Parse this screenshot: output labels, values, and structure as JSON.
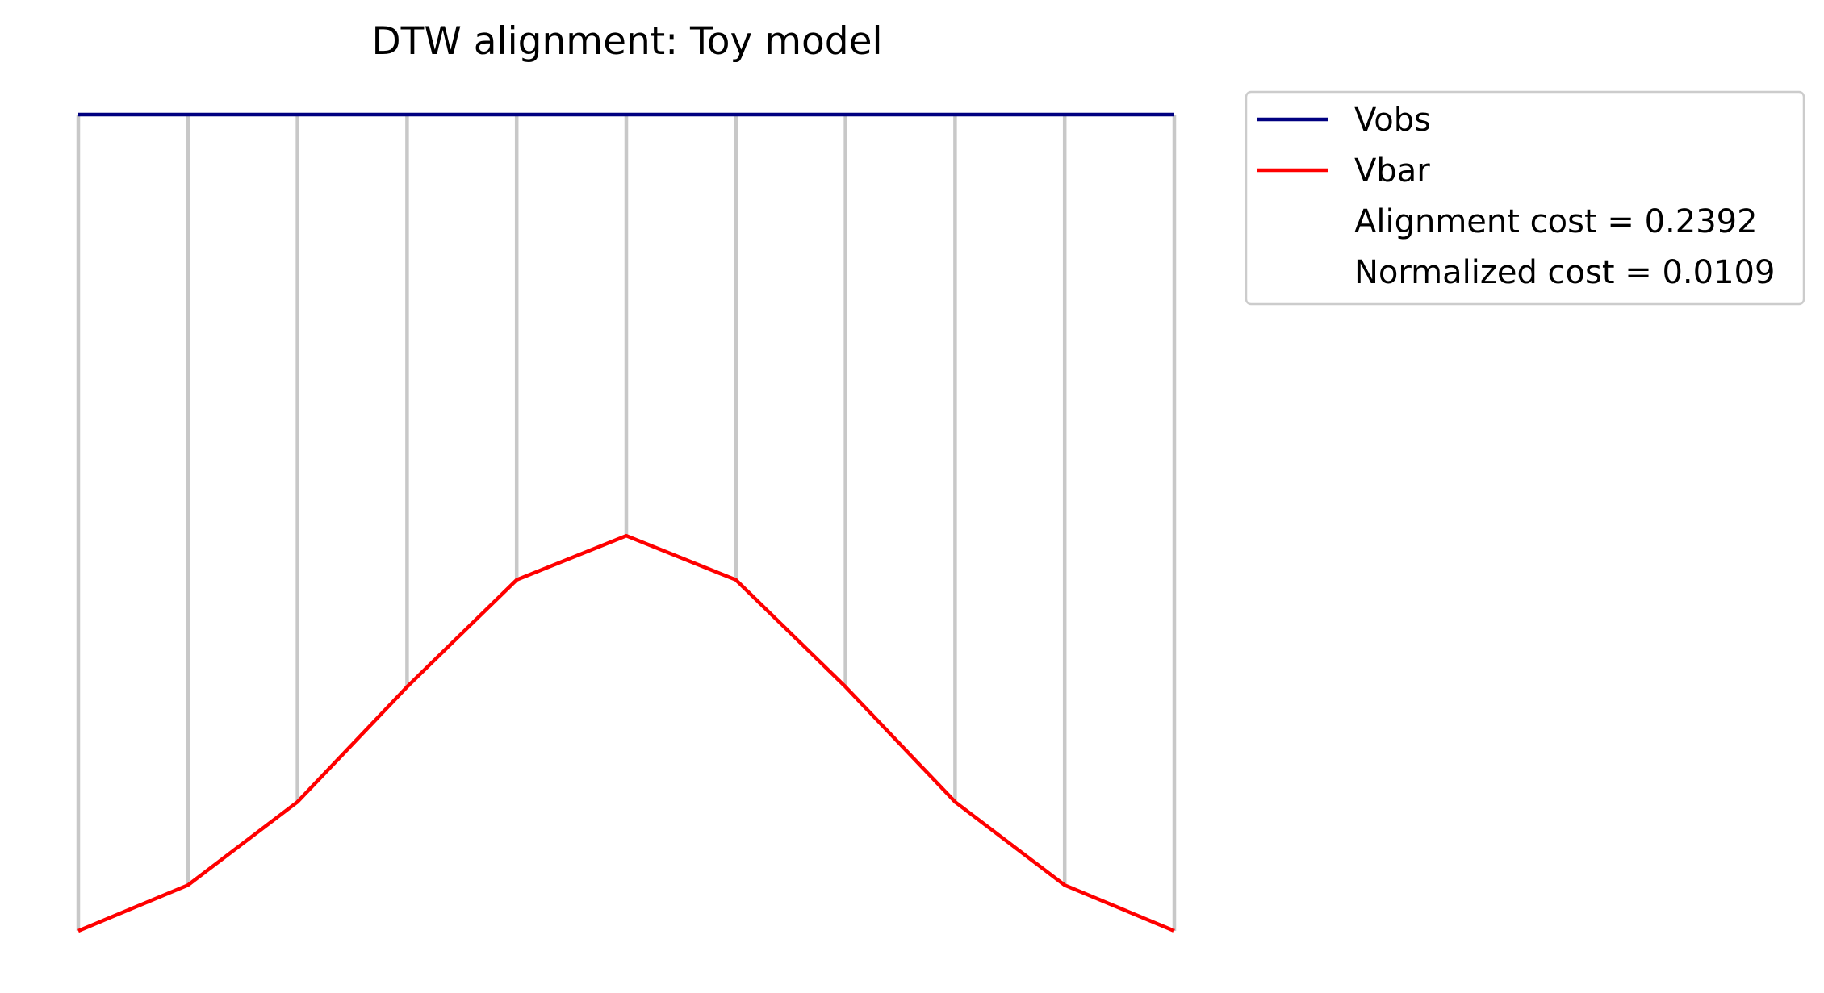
{
  "chart_data": {
    "type": "line",
    "title": "DTW alignment: Toy model",
    "xlabel": "",
    "ylabel": "",
    "x": [
      0,
      1,
      2,
      3,
      4,
      5,
      6,
      7,
      8,
      9,
      10
    ],
    "series": [
      {
        "name": "Vobs",
        "color": "#000080",
        "values": [
          1,
          1,
          1,
          1,
          1,
          1,
          1,
          1,
          1,
          1,
          1
        ]
      },
      {
        "name": "Vbar",
        "color": "#ff0000",
        "values": [
          0,
          0.056,
          0.158,
          0.299,
          0.43,
          0.484,
          0.43,
          0.299,
          0.158,
          0.056,
          0
        ]
      }
    ],
    "alignment_pairs": [
      [
        0,
        0
      ],
      [
        1,
        1
      ],
      [
        2,
        2
      ],
      [
        3,
        3
      ],
      [
        4,
        4
      ],
      [
        5,
        5
      ],
      [
        6,
        6
      ],
      [
        7,
        7
      ],
      [
        8,
        8
      ],
      [
        9,
        9
      ],
      [
        10,
        10
      ]
    ],
    "alignment_line_color": "#c8c8c8",
    "legend": {
      "placement": "outside-top-right",
      "entries": [
        {
          "label": "Vobs",
          "type": "line",
          "color": "#000080"
        },
        {
          "label": "Vbar",
          "type": "line",
          "color": "#ff0000"
        },
        {
          "label": "Alignment cost = 0.2392",
          "type": "text"
        },
        {
          "label": "Normalized cost = 0.0109",
          "type": "text"
        }
      ]
    },
    "xlim": [
      0,
      10
    ],
    "ylim": [
      0,
      1
    ],
    "axes_visible": false,
    "grid": false
  }
}
